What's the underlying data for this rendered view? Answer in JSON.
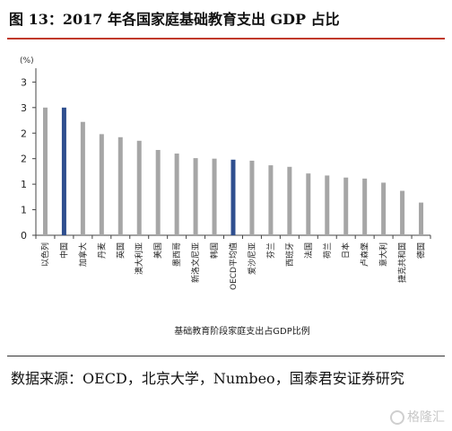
{
  "title": "图 13：2017 年各国家庭基础教育支出 GDP 占比",
  "source_text": "数据来源：OECD，北京大学，Numbeo，国泰君安证券研究",
  "watermark": "格隆汇",
  "colors": {
    "bar": "#a6a6a6",
    "highlight": "#2f4f8f",
    "title_rule": "#c0392b"
  },
  "chart_data": {
    "type": "bar",
    "unit_label": "(%)",
    "xlabel": "基础教育阶段家庭支出占GDP比例",
    "ytick_labels": [
      "0",
      "1",
      "1",
      "2",
      "2",
      "3",
      "3"
    ],
    "ytick_values": [
      0,
      0.5,
      1.0,
      1.5,
      2.0,
      2.5,
      3.0
    ],
    "ylim": [
      0,
      3.2
    ],
    "grid": false,
    "categories": [
      "以色列",
      "中国",
      "加拿大",
      "丹麦",
      "英国",
      "澳大利亚",
      "美国",
      "墨西哥",
      "新洛文尼亚",
      "韩国",
      "OECD平均值",
      "爱沙尼亚",
      "芬兰",
      "西班牙",
      "法国",
      "荷兰",
      "日本",
      "卢森堡",
      "意大利",
      "捷克共和国",
      "德国"
    ],
    "values": [
      2.5,
      2.5,
      2.22,
      1.98,
      1.92,
      1.85,
      1.67,
      1.6,
      1.51,
      1.5,
      1.48,
      1.46,
      1.37,
      1.34,
      1.21,
      1.17,
      1.13,
      1.11,
      1.03,
      0.87,
      0.64
    ],
    "highlight": [
      "中国",
      "OECD平均值"
    ]
  }
}
